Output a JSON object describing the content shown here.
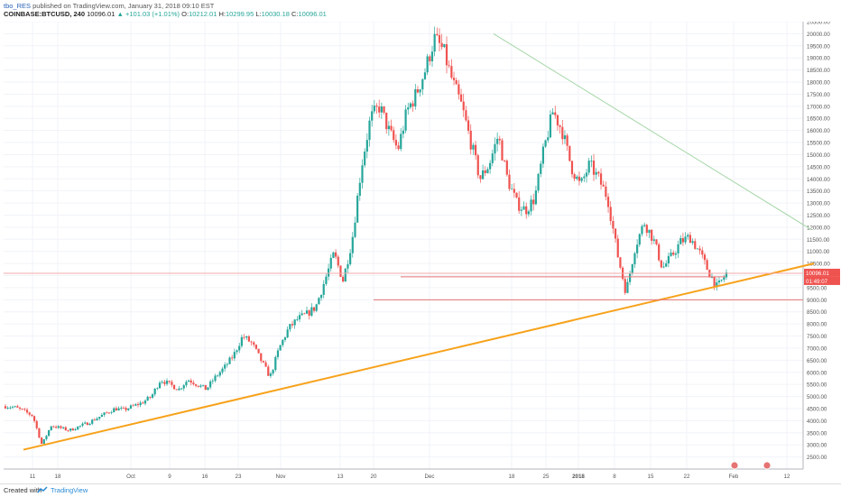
{
  "header": {
    "user": "tbo_RES",
    "published": "published on TradingView.com, January 31, 2018 09:10 EST",
    "symbol": "COINBASE:BTCUSD, 240",
    "last": "10096.01",
    "change": "▲ +101.03 (+1.01%)",
    "open_label": "O:",
    "open": "10212.01",
    "high_label": "H:",
    "high": "10299.95",
    "low_label": "L:",
    "low": "10030.18",
    "close_label": "C:",
    "close": "10096.01"
  },
  "footer": {
    "created": "Created with",
    "brand": "TradingView"
  },
  "colors": {
    "up": "#26a69a",
    "down": "#ef5350",
    "trend": "#f7a21b",
    "resistance": "#a5d6a7",
    "support": "#e57373",
    "grid": "#f0f3f8"
  },
  "chart_data": {
    "type": "candlestick",
    "ylim": [
      2000,
      20500
    ],
    "yticks": [
      "2500.00",
      "3000.00",
      "3500.00",
      "4000.00",
      "4500.00",
      "5000.00",
      "5500.00",
      "6000.00",
      "6500.00",
      "7000.00",
      "7500.00",
      "8000.00",
      "8500.00",
      "9000.00",
      "9500.00",
      "10000.00",
      "10500.00",
      "11000.00",
      "11500.00",
      "12000.00",
      "12500.00",
      "13000.00",
      "13500.00",
      "14000.00",
      "14500.00",
      "15000.00",
      "15500.00",
      "16000.00",
      "16500.00",
      "17000.00",
      "17500.00",
      "18000.00",
      "18500.00",
      "19000.00",
      "19500.00",
      "20000.00",
      "20500.00"
    ],
    "xtick_labels": [
      "11",
      "18",
      "Oct",
      "9",
      "16",
      "23",
      "Nov",
      "13",
      "20",
      "Dec",
      "18",
      "25",
      "2018",
      "8",
      "15",
      "22",
      "Feb",
      "12"
    ],
    "last_price_label": "10096.01",
    "countdown_label": "01:49:07",
    "close_path": [
      4600,
      4550,
      4400,
      4200,
      3000,
      3800,
      3700,
      3600,
      3750,
      3900,
      4100,
      4300,
      4500,
      4450,
      4600,
      4750,
      5000,
      5700,
      5500,
      5300,
      5700,
      5500,
      5300,
      5800,
      6200,
      6700,
      7500,
      7200,
      6500,
      5800,
      7000,
      7800,
      8200,
      8400,
      8700,
      9800,
      10900,
      9800,
      11500,
      14500,
      16500,
      17000,
      16000,
      15200,
      16800,
      17500,
      18500,
      19800,
      19300,
      18000,
      17000,
      15500,
      14000,
      14600,
      15800,
      14000,
      13000,
      12700,
      13200,
      15200,
      16800,
      16000,
      14500,
      13700,
      14600,
      14000,
      13200,
      11000,
      9300,
      11200,
      12200,
      11500,
      10300,
      10800,
      11400,
      11600,
      11000,
      10200,
      9500,
      10096
    ],
    "trendlines": [
      {
        "name": "support-trend",
        "from": [
          "11",
          2800
        ],
        "to": [
          "12",
          10500
        ]
      },
      {
        "name": "resistance-trend",
        "from": [
          "18",
          20000
        ],
        "to": [
          "12",
          11900
        ]
      },
      {
        "name": "hline-10000",
        "price": 9950
      },
      {
        "name": "hline-9000",
        "price": 9000
      },
      {
        "name": "hline-10096",
        "price": 10096
      }
    ]
  }
}
